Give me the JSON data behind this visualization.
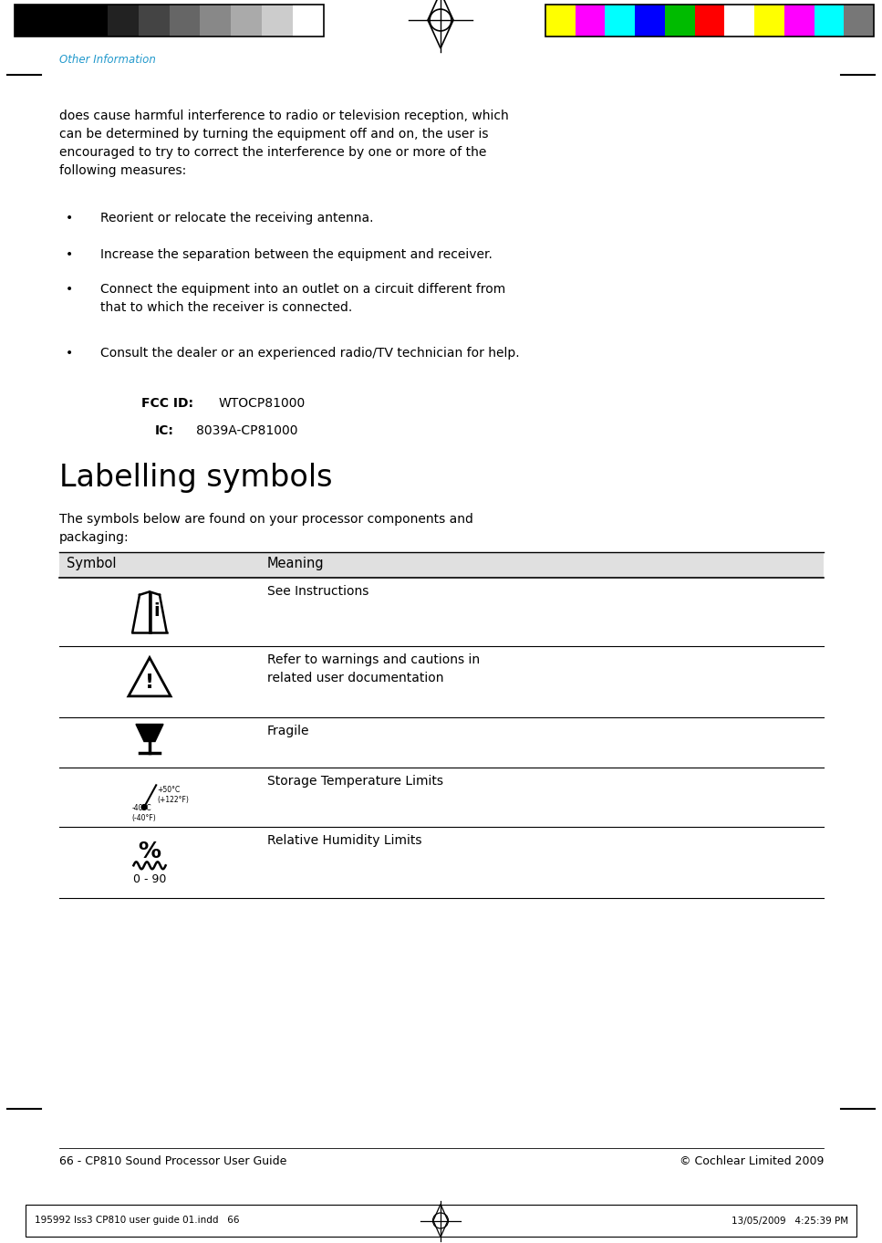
{
  "bg_color": "#ffffff",
  "page_width": 9.67,
  "page_height": 13.62,
  "header_left_colors": [
    "#000000",
    "#000000",
    "#000000",
    "#222222",
    "#444444",
    "#666666",
    "#888888",
    "#aaaaaa",
    "#cccccc",
    "#ffffff"
  ],
  "header_right_colors": [
    "#ffff00",
    "#ff00ff",
    "#00ffff",
    "#0000ff",
    "#00bb00",
    "#ff0000",
    "#ffffff",
    "#ffff00",
    "#ff00ff",
    "#00ffff",
    "#777777"
  ],
  "section_label": "Other Information",
  "section_label_color": "#2299cc",
  "body_text": "does cause harmful interference to radio or television reception, which\ncan be determined by turning the equipment off and on, the user is\nencouraged to try to correct the interference by one or more of the\nfollowing measures:",
  "bullets": [
    "Reorient or relocate the receiving antenna.",
    "Increase the separation between the equipment and receiver.",
    "Connect the equipment into an outlet on a circuit different from\nthat to which the receiver is connected.",
    "Consult the dealer or an experienced radio/TV technician for help."
  ],
  "fcc_label": "FCC ID:",
  "fcc_value": "WTOCP81000",
  "ic_label": "IC:",
  "ic_value": "8039A-CP81000",
  "section2_title": "Labelling symbols",
  "section2_body": "The symbols below are found on your processor components and\npackaging:",
  "table_header_texts": [
    "Symbol",
    "Meaning"
  ],
  "table_header_bg": "#e0e0e0",
  "table_row_meanings": [
    "See Instructions",
    "Refer to warnings and cautions in\nrelated user documentation",
    "Fragile",
    "Storage Temperature Limits",
    "Relative Humidity Limits"
  ],
  "footer_left": "66 - CP810 Sound Processor User Guide",
  "footer_right": "© Cochlear Limited 2009",
  "bottom_bar_left": "195992 Iss3 CP810 user guide 01.indd   66",
  "bottom_bar_right": "13/05/2009   4:25:39 PM"
}
